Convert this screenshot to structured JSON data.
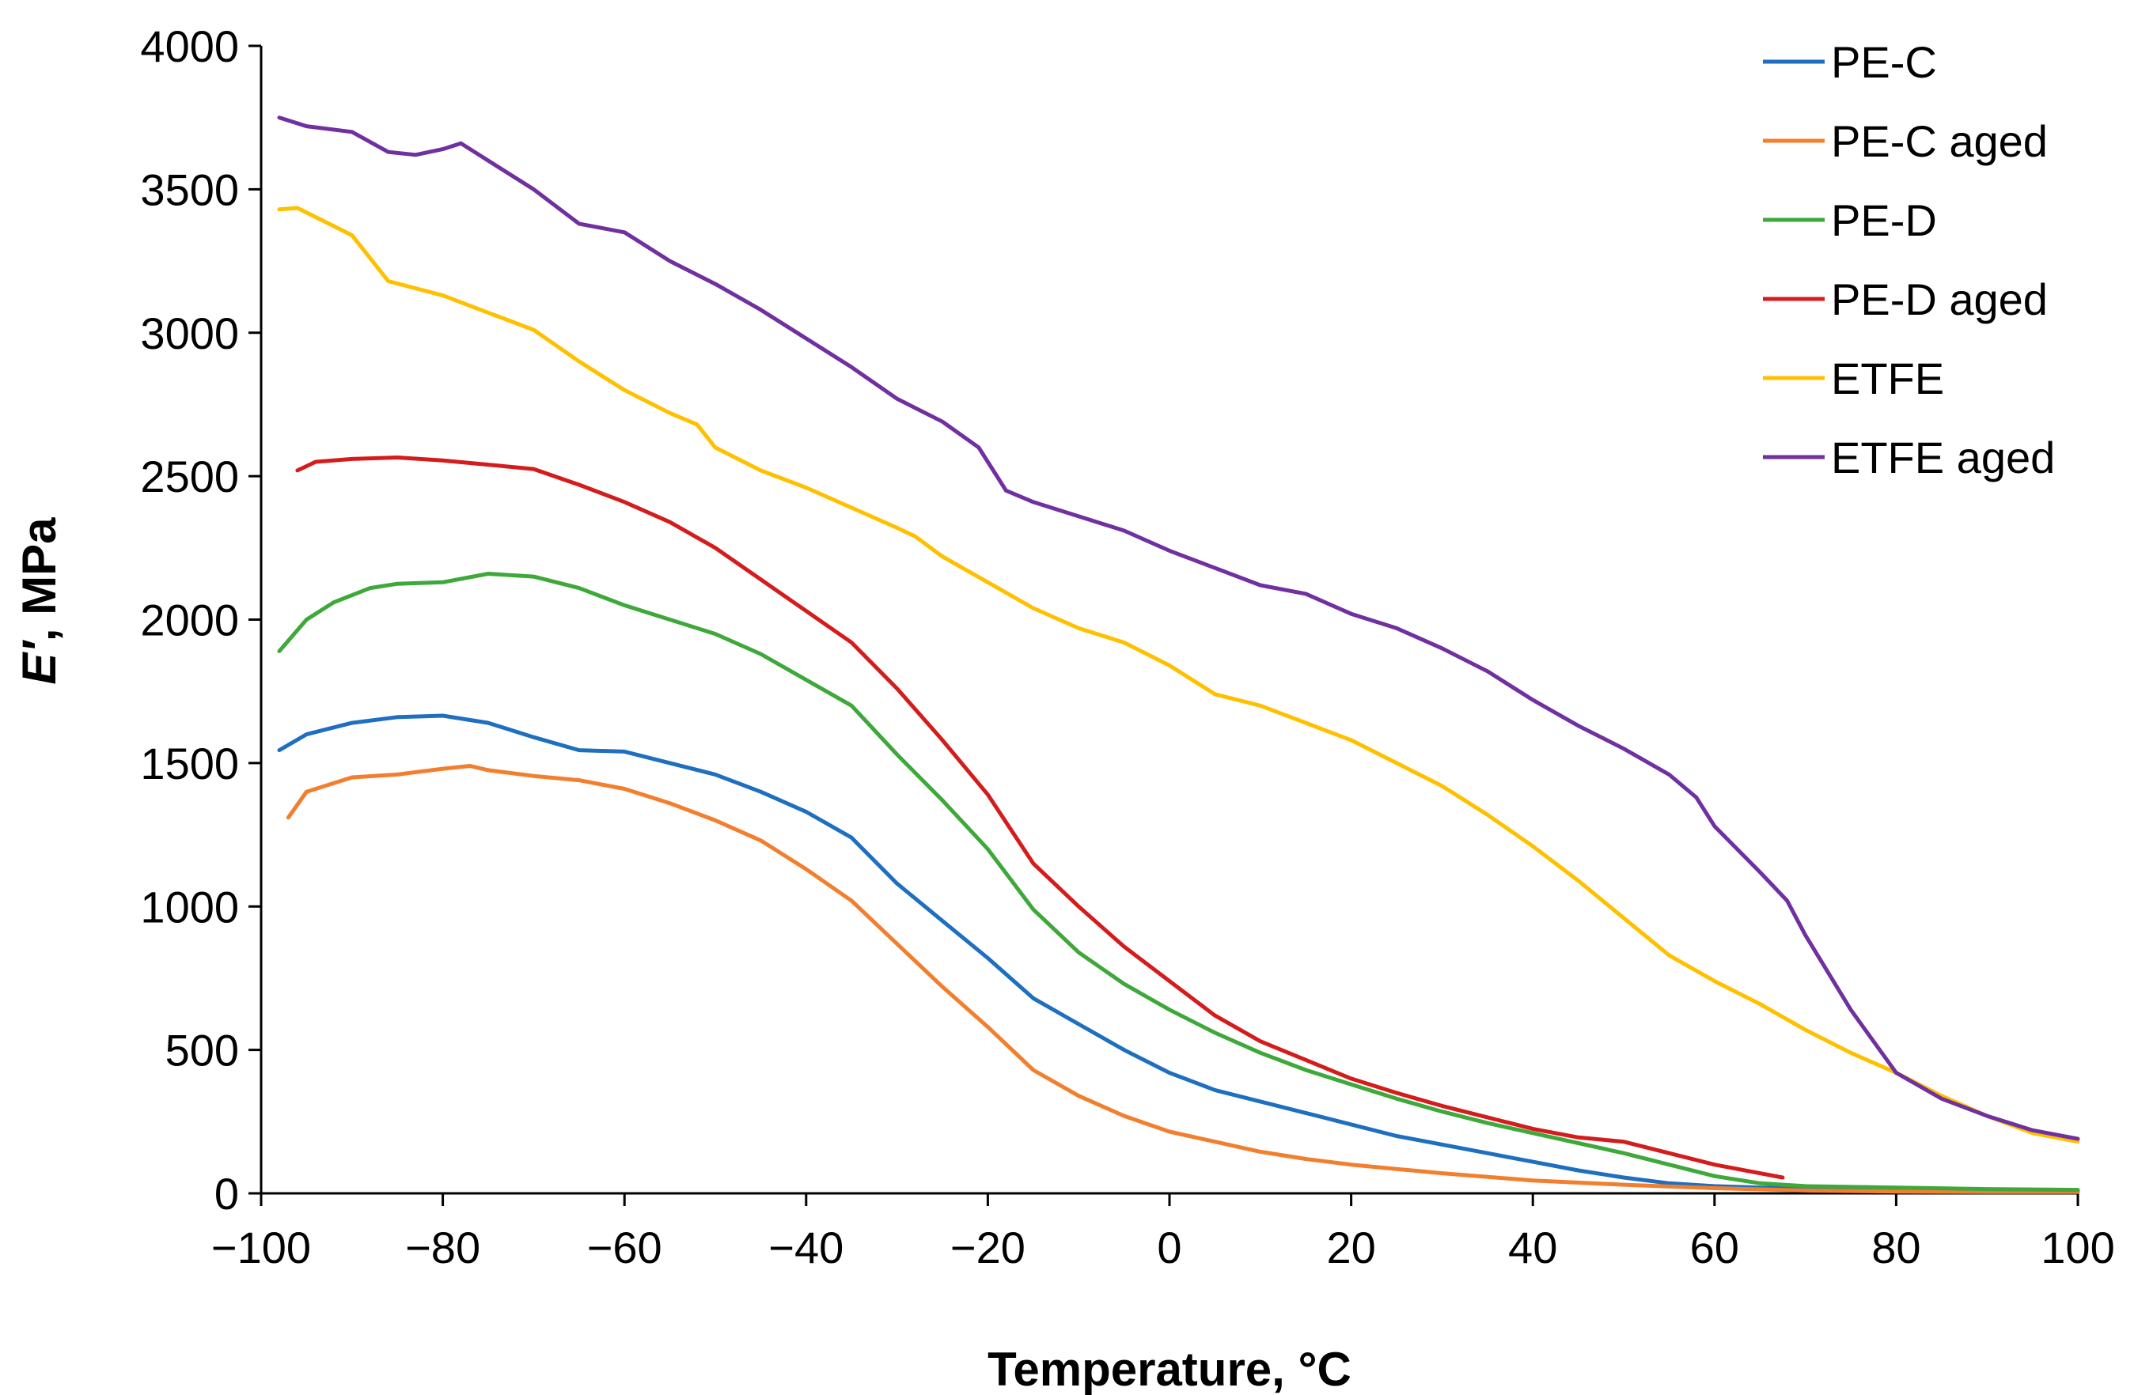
{
  "chart_data": {
    "type": "line",
    "title": "",
    "xlabel": "Temperature, °C",
    "ylabel_symbol": "E′",
    "ylabel_unit": ", MPa",
    "xlim": [
      -100,
      100
    ],
    "ylim": [
      0,
      4000
    ],
    "x_ticks": [
      -100,
      -80,
      -60,
      -40,
      -20,
      0,
      20,
      40,
      60,
      80,
      100
    ],
    "x_tick_labels": [
      "−100",
      "−80",
      "−60",
      "−40",
      "−20",
      "0",
      "20",
      "40",
      "60",
      "80",
      "100"
    ],
    "y_ticks": [
      0,
      500,
      1000,
      1500,
      2000,
      2500,
      3000,
      3500,
      4000
    ],
    "y_tick_labels": [
      "0",
      "500",
      "1000",
      "1500",
      "2000",
      "2500",
      "3000",
      "3500",
      "4000"
    ],
    "grid": false,
    "legend_position": "top-right",
    "series": [
      {
        "name": "PE-C",
        "color": "#1f6fc0",
        "x": [
          -98,
          -95,
          -90,
          -85,
          -80,
          -75,
          -70,
          -65,
          -60,
          -55,
          -50,
          -45,
          -40,
          -35,
          -30,
          -25,
          -20,
          -15,
          -10,
          -5,
          0,
          5,
          10,
          15,
          20,
          25,
          30,
          35,
          40,
          45,
          50,
          55,
          60,
          65,
          70,
          80,
          90,
          100
        ],
        "y": [
          1545,
          1600,
          1640,
          1660,
          1665,
          1640,
          1590,
          1545,
          1540,
          1500,
          1460,
          1400,
          1330,
          1240,
          1080,
          950,
          820,
          680,
          590,
          500,
          420,
          360,
          320,
          280,
          240,
          200,
          170,
          140,
          110,
          80,
          55,
          35,
          25,
          20,
          18,
          15,
          12,
          10
        ]
      },
      {
        "name": "PE-C aged",
        "color": "#f27e2e",
        "x": [
          -97,
          -95,
          -90,
          -85,
          -80,
          -77,
          -75,
          -70,
          -65,
          -60,
          -55,
          -50,
          -45,
          -40,
          -35,
          -30,
          -25,
          -20,
          -15,
          -10,
          -5,
          0,
          5,
          10,
          15,
          20,
          25,
          30,
          40,
          50,
          60,
          70,
          80,
          90,
          100
        ],
        "y": [
          1310,
          1400,
          1450,
          1460,
          1480,
          1490,
          1475,
          1455,
          1440,
          1410,
          1360,
          1300,
          1230,
          1130,
          1020,
          870,
          720,
          580,
          430,
          340,
          270,
          215,
          180,
          145,
          120,
          100,
          85,
          70,
          45,
          30,
          18,
          10,
          6,
          5,
          5
        ]
      },
      {
        "name": "PE-D",
        "color": "#3ea83a",
        "x": [
          -98,
          -95,
          -92,
          -88,
          -85,
          -80,
          -75,
          -70,
          -65,
          -60,
          -55,
          -50,
          -45,
          -40,
          -35,
          -30,
          -25,
          -20,
          -15,
          -10,
          -5,
          0,
          5,
          10,
          15,
          20,
          25,
          30,
          35,
          40,
          45,
          50,
          55,
          60,
          65,
          70,
          80,
          90,
          100
        ],
        "y": [
          1890,
          2000,
          2060,
          2110,
          2125,
          2130,
          2160,
          2150,
          2110,
          2050,
          2000,
          1950,
          1880,
          1790,
          1700,
          1530,
          1370,
          1200,
          990,
          840,
          730,
          640,
          560,
          490,
          430,
          380,
          330,
          285,
          245,
          210,
          175,
          140,
          100,
          60,
          35,
          25,
          20,
          15,
          12
        ]
      },
      {
        "name": "PE-D aged",
        "color": "#d41c1c",
        "x": [
          -96,
          -94,
          -90,
          -85,
          -80,
          -75,
          -70,
          -65,
          -60,
          -55,
          -50,
          -45,
          -40,
          -35,
          -30,
          -25,
          -20,
          -15,
          -10,
          -5,
          0,
          5,
          10,
          15,
          20,
          25,
          30,
          35,
          40,
          45,
          50,
          55,
          60,
          65,
          67.5
        ],
        "y": [
          2520,
          2550,
          2560,
          2565,
          2555,
          2540,
          2525,
          2470,
          2410,
          2340,
          2250,
          2140,
          2030,
          1920,
          1760,
          1580,
          1390,
          1150,
          1000,
          860,
          740,
          620,
          530,
          465,
          400,
          350,
          305,
          265,
          225,
          195,
          180,
          140,
          100,
          70,
          55
        ]
      },
      {
        "name": "ETFE",
        "color": "#ffc000",
        "x": [
          -98,
          -96,
          -90,
          -86,
          -80,
          -75,
          -70,
          -65,
          -60,
          -55,
          -52,
          -50,
          -45,
          -40,
          -35,
          -30,
          -28,
          -25,
          -20,
          -15,
          -10,
          -5,
          0,
          5,
          10,
          15,
          20,
          25,
          30,
          35,
          40,
          45,
          50,
          55,
          60,
          65,
          70,
          75,
          80,
          85,
          90,
          95,
          100
        ],
        "y": [
          3430,
          3435,
          3340,
          3180,
          3130,
          3070,
          3010,
          2900,
          2800,
          2720,
          2680,
          2600,
          2520,
          2460,
          2390,
          2320,
          2290,
          2220,
          2130,
          2040,
          1970,
          1920,
          1840,
          1740,
          1700,
          1640,
          1580,
          1500,
          1420,
          1320,
          1210,
          1090,
          960,
          830,
          740,
          660,
          570,
          490,
          420,
          340,
          270,
          210,
          180
        ]
      },
      {
        "name": "ETFE aged",
        "color": "#7030a0",
        "x": [
          -98,
          -95,
          -90,
          -86,
          -83,
          -80,
          -78,
          -75,
          -70,
          -65,
          -60,
          -55,
          -50,
          -45,
          -40,
          -35,
          -30,
          -25,
          -21,
          -18,
          -15,
          -10,
          -5,
          0,
          5,
          10,
          15,
          20,
          25,
          30,
          35,
          40,
          45,
          50,
          55,
          58,
          60,
          65,
          68,
          70,
          75,
          80,
          85,
          90,
          95,
          100
        ],
        "y": [
          3750,
          3720,
          3700,
          3630,
          3620,
          3640,
          3660,
          3600,
          3500,
          3380,
          3350,
          3250,
          3170,
          3080,
          2980,
          2880,
          2770,
          2690,
          2600,
          2450,
          2410,
          2360,
          2310,
          2240,
          2180,
          2120,
          2090,
          2020,
          1970,
          1900,
          1820,
          1720,
          1630,
          1550,
          1460,
          1380,
          1280,
          1120,
          1020,
          900,
          640,
          420,
          330,
          270,
          220,
          190
        ]
      }
    ]
  }
}
